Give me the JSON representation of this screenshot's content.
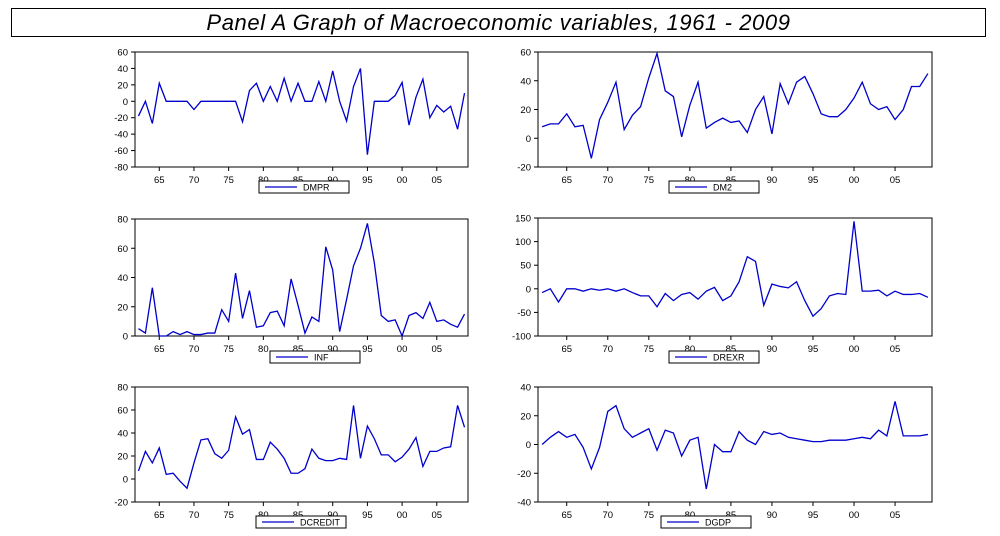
{
  "title": "Panel A Graph of Macroeconomic variables, 1961 - 2009",
  "colors": {
    "series": "#0000cc",
    "axis": "#000000",
    "background": "#ffffff"
  },
  "chart_data": [
    {
      "type": "line",
      "x": [
        1962,
        1963,
        1964,
        1965,
        1966,
        1967,
        1968,
        1969,
        1970,
        1971,
        1972,
        1973,
        1974,
        1975,
        1976,
        1977,
        1978,
        1979,
        1980,
        1981,
        1982,
        1983,
        1984,
        1985,
        1986,
        1987,
        1988,
        1989,
        1990,
        1991,
        1992,
        1993,
        1994,
        1995,
        1996,
        1997,
        1998,
        1999,
        2000,
        2001,
        2002,
        2003,
        2004,
        2005,
        2006,
        2007,
        2008,
        2009
      ],
      "series": [
        {
          "name": "DMPR",
          "values": [
            -18,
            0,
            -27,
            22,
            0,
            0,
            0,
            0,
            -10,
            0,
            0,
            0,
            0,
            0,
            0,
            -25,
            13,
            22,
            0,
            18,
            0,
            28,
            0,
            22,
            0,
            0,
            24,
            0,
            37,
            0,
            -24,
            18,
            40,
            -65,
            0,
            0,
            0,
            7,
            23,
            -29,
            5,
            27,
            -20,
            -5,
            -13,
            -6,
            -34,
            10
          ]
        }
      ],
      "xticks": [
        "65",
        "70",
        "75",
        "80",
        "85",
        "90",
        "95",
        "00",
        "05"
      ],
      "xtick_values": [
        1965,
        1970,
        1975,
        1980,
        1985,
        1990,
        1995,
        2000,
        2005
      ],
      "yticks": [
        -80,
        -60,
        -40,
        -20,
        0,
        20,
        40,
        60
      ],
      "ylim": [
        -80,
        60
      ],
      "xlim": [
        1961.5,
        2009.5
      ],
      "legend": "bottom-center",
      "grid": false
    },
    {
      "type": "line",
      "x": [
        1962,
        1963,
        1964,
        1965,
        1966,
        1967,
        1968,
        1969,
        1970,
        1971,
        1972,
        1973,
        1974,
        1975,
        1976,
        1977,
        1978,
        1979,
        1980,
        1981,
        1982,
        1983,
        1984,
        1985,
        1986,
        1987,
        1988,
        1989,
        1990,
        1991,
        1992,
        1993,
        1994,
        1995,
        1996,
        1997,
        1998,
        1999,
        2000,
        2001,
        2002,
        2003,
        2004,
        2005,
        2006,
        2007,
        2008,
        2009
      ],
      "series": [
        {
          "name": "DM2",
          "values": [
            8,
            10,
            10,
            17,
            8,
            9,
            -14,
            13,
            25,
            39,
            6,
            16,
            22,
            42,
            59,
            33,
            29,
            1,
            23,
            39,
            7,
            11,
            14,
            11,
            12,
            4,
            20,
            29,
            3,
            38,
            24,
            39,
            43,
            31,
            17,
            15,
            15,
            20,
            28,
            39,
            24,
            20,
            22,
            13,
            20,
            36,
            36,
            45
          ]
        }
      ],
      "xticks": [
        "65",
        "70",
        "75",
        "80",
        "85",
        "90",
        "95",
        "00",
        "05"
      ],
      "xtick_values": [
        1965,
        1970,
        1975,
        1980,
        1985,
        1990,
        1995,
        2000,
        2005
      ],
      "yticks": [
        -20,
        0,
        20,
        40,
        60
      ],
      "ylim": [
        -20,
        60
      ],
      "xlim": [
        1961.5,
        2009.5
      ],
      "legend": "bottom-center",
      "grid": false
    },
    {
      "type": "line",
      "x": [
        1962,
        1963,
        1964,
        1965,
        1966,
        1967,
        1968,
        1969,
        1970,
        1971,
        1972,
        1973,
        1974,
        1975,
        1976,
        1977,
        1978,
        1979,
        1980,
        1981,
        1982,
        1983,
        1984,
        1985,
        1986,
        1987,
        1988,
        1989,
        1990,
        1991,
        1992,
        1993,
        1994,
        1995,
        1996,
        1997,
        1998,
        1999,
        2000,
        2001,
        2002,
        2003,
        2004,
        2005,
        2006,
        2007,
        2008,
        2009
      ],
      "series": [
        {
          "name": "INF",
          "values": [
            5,
            2,
            33,
            0,
            0,
            3,
            1,
            3,
            1,
            1,
            2,
            2,
            18,
            10,
            43,
            12,
            31,
            6,
            7,
            16,
            17,
            7,
            39,
            21,
            2,
            13,
            10,
            61,
            45,
            3,
            25,
            48,
            60,
            77,
            50,
            14,
            10,
            11,
            0,
            14,
            16,
            12,
            23,
            10,
            11,
            8,
            6,
            15
          ]
        }
      ],
      "xticks": [
        "65",
        "70",
        "75",
        "80",
        "85",
        "90",
        "95",
        "00",
        "05"
      ],
      "xtick_values": [
        1965,
        1970,
        1975,
        1980,
        1985,
        1990,
        1995,
        2000,
        2005
      ],
      "yticks": [
        0,
        20,
        40,
        60,
        80
      ],
      "ylim": [
        0,
        80
      ],
      "xlim": [
        1961.5,
        2009.5
      ],
      "legend": "bottom-center",
      "grid": false
    },
    {
      "type": "line",
      "x": [
        1962,
        1963,
        1964,
        1965,
        1966,
        1967,
        1968,
        1969,
        1970,
        1971,
        1972,
        1973,
        1974,
        1975,
        1976,
        1977,
        1978,
        1979,
        1980,
        1981,
        1982,
        1983,
        1984,
        1985,
        1986,
        1987,
        1988,
        1989,
        1990,
        1991,
        1992,
        1993,
        1994,
        1995,
        1996,
        1997,
        1998,
        1999,
        2000,
        2001,
        2002,
        2003,
        2004,
        2005,
        2006,
        2007,
        2008,
        2009
      ],
      "series": [
        {
          "name": "DREXR",
          "values": [
            -8,
            0,
            -28,
            0,
            0,
            -5,
            0,
            -3,
            0,
            -5,
            0,
            -8,
            -15,
            -15,
            -38,
            -10,
            -25,
            -12,
            -8,
            -22,
            -5,
            3,
            -25,
            -15,
            15,
            68,
            58,
            -35,
            10,
            5,
            2,
            15,
            -25,
            -58,
            -42,
            -15,
            -10,
            -12,
            143,
            -5,
            -5,
            -3,
            -15,
            -5,
            -12,
            -12,
            -10,
            -18
          ]
        }
      ],
      "xticks": [
        "65",
        "70",
        "75",
        "80",
        "85",
        "90",
        "95",
        "00",
        "05"
      ],
      "xtick_values": [
        1965,
        1970,
        1975,
        1980,
        1985,
        1990,
        1995,
        2000,
        2005
      ],
      "yticks": [
        -100,
        -50,
        0,
        50,
        100,
        150
      ],
      "ylim": [
        -100,
        150
      ],
      "xlim": [
        1961.5,
        2009.5
      ],
      "legend": "bottom-center",
      "grid": false
    },
    {
      "type": "line",
      "x": [
        1962,
        1963,
        1964,
        1965,
        1966,
        1967,
        1968,
        1969,
        1970,
        1971,
        1972,
        1973,
        1974,
        1975,
        1976,
        1977,
        1978,
        1979,
        1980,
        1981,
        1982,
        1983,
        1984,
        1985,
        1986,
        1987,
        1988,
        1989,
        1990,
        1991,
        1992,
        1993,
        1994,
        1995,
        1996,
        1997,
        1998,
        1999,
        2000,
        2001,
        2002,
        2003,
        2004,
        2005,
        2006,
        2007,
        2008,
        2009
      ],
      "series": [
        {
          "name": "DCREDIT",
          "values": [
            7,
            24,
            14,
            27,
            4,
            5,
            -2,
            -8,
            14,
            34,
            35,
            22,
            18,
            25,
            54,
            39,
            43,
            17,
            17,
            32,
            26,
            18,
            5,
            5,
            9,
            26,
            18,
            16,
            16,
            18,
            17,
            64,
            18,
            46,
            35,
            21,
            21,
            15,
            19,
            26,
            36,
            11,
            24,
            24,
            27,
            28,
            64,
            45
          ]
        }
      ],
      "xticks": [
        "65",
        "70",
        "75",
        "80",
        "85",
        "90",
        "95",
        "00",
        "05"
      ],
      "xtick_values": [
        1965,
        1970,
        1975,
        1980,
        1985,
        1990,
        1995,
        2000,
        2005
      ],
      "yticks": [
        -20,
        0,
        20,
        40,
        60,
        80
      ],
      "ylim": [
        -20,
        80
      ],
      "xlim": [
        1961.5,
        2009.5
      ],
      "legend": "bottom-center",
      "grid": false
    },
    {
      "type": "line",
      "x": [
        1962,
        1963,
        1964,
        1965,
        1966,
        1967,
        1968,
        1969,
        1970,
        1971,
        1972,
        1973,
        1974,
        1975,
        1976,
        1977,
        1978,
        1979,
        1980,
        1981,
        1982,
        1983,
        1984,
        1985,
        1986,
        1987,
        1988,
        1989,
        1990,
        1991,
        1992,
        1993,
        1994,
        1995,
        1996,
        1997,
        1998,
        1999,
        2000,
        2001,
        2002,
        2003,
        2004,
        2005,
        2006,
        2007,
        2008,
        2009
      ],
      "series": [
        {
          "name": "DGDP",
          "values": [
            0,
            5,
            9,
            5,
            7,
            -2,
            -17,
            -2,
            23,
            27,
            11,
            5,
            8,
            11,
            -4,
            10,
            8,
            -8,
            3,
            5,
            -31,
            0,
            -5,
            -5,
            9,
            3,
            0,
            9,
            7,
            8,
            5,
            4,
            3,
            2,
            2,
            3,
            3,
            3,
            4,
            5,
            4,
            10,
            6,
            30,
            6,
            6,
            6,
            7
          ]
        }
      ],
      "xticks": [
        "65",
        "70",
        "75",
        "80",
        "85",
        "90",
        "95",
        "00",
        "05"
      ],
      "xtick_values": [
        1965,
        1970,
        1975,
        1980,
        1985,
        1990,
        1995,
        2000,
        2005
      ],
      "yticks": [
        -40,
        -20,
        0,
        20,
        40
      ],
      "ylim": [
        -40,
        40
      ],
      "xlim": [
        1961.5,
        2009.5
      ],
      "legend": "bottom-center",
      "grid": false
    }
  ]
}
